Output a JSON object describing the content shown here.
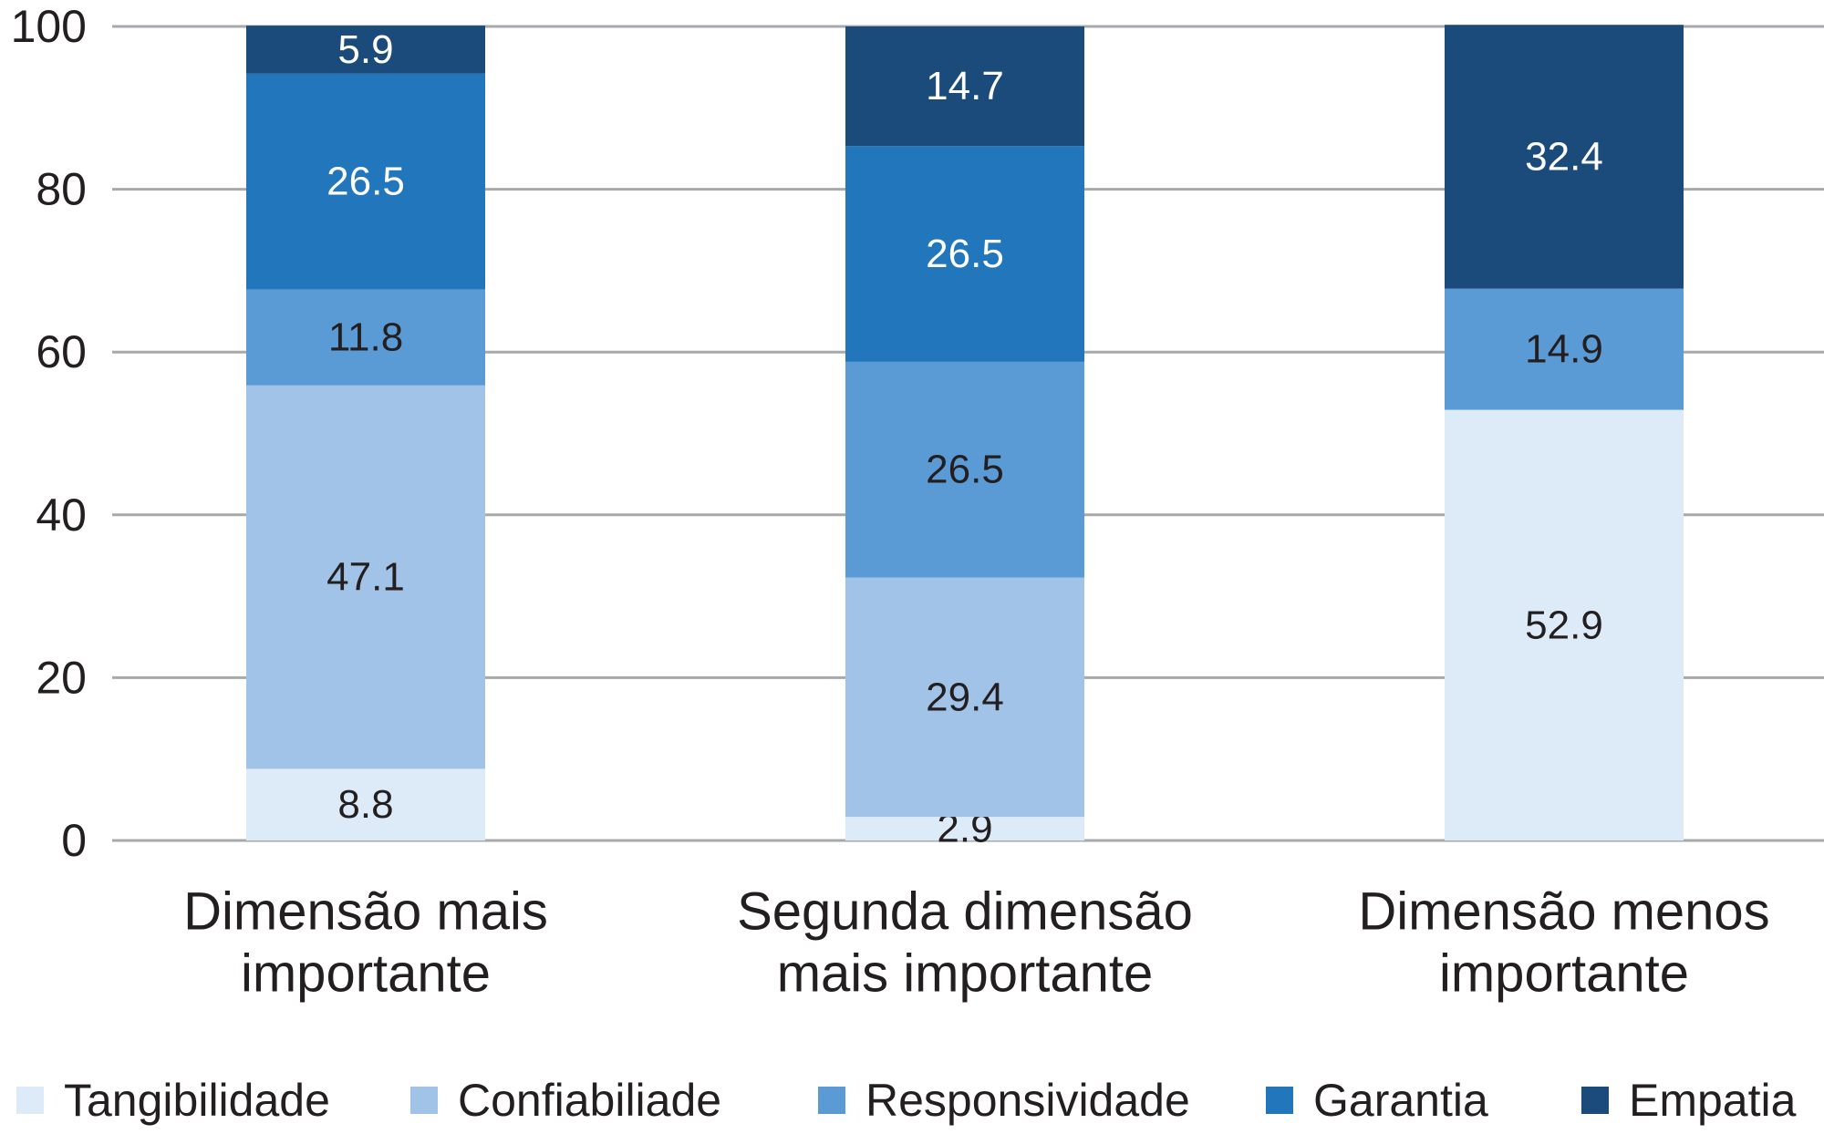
{
  "chart_data": {
    "type": "bar",
    "stacked": true,
    "categories": [
      [
        "Dimensão mais",
        "importante"
      ],
      [
        "Segunda dimensão",
        "mais importante"
      ],
      [
        "Dimensão menos",
        "importante"
      ]
    ],
    "series": [
      {
        "name": "Tangibilidade",
        "color": "#ddebf8",
        "label_color": "#231f20",
        "values": [
          8.8,
          2.9,
          52.9
        ]
      },
      {
        "name": "Confiabiliade",
        "color": "#a1c3e7",
        "label_color": "#231f20",
        "values": [
          47.1,
          29.4,
          0
        ]
      },
      {
        "name": "Responsividade",
        "color": "#5b9bd5",
        "label_color": "#231f20",
        "values": [
          11.8,
          26.5,
          14.9
        ]
      },
      {
        "name": "Garantia",
        "color": "#2176bc",
        "label_color": "#ffffff",
        "values": [
          26.5,
          26.5,
          0
        ]
      },
      {
        "name": "Empatia",
        "color": "#1b4b7a",
        "label_color": "#ffffff",
        "values": [
          5.9,
          14.7,
          32.4
        ]
      }
    ],
    "y_ticks": [
      0,
      20,
      40,
      60,
      80,
      100
    ],
    "ylim": [
      0,
      100
    ],
    "grid": true,
    "gridline_color": "#a7a9ac",
    "legend_position": "bottom",
    "title": "",
    "xlabel": "",
    "ylabel": ""
  }
}
